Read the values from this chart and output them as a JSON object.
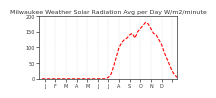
{
  "title": "Milwaukee Weather Solar Radiation Avg per Day W/m2/minute",
  "monthly_tick_positions": [
    2,
    6,
    10,
    14,
    18,
    22,
    26,
    30,
    34,
    38,
    42,
    46,
    50
  ],
  "monthly_tick_labels": [
    "J",
    "F",
    "M",
    "A",
    "M",
    "J",
    "J",
    "A",
    "S",
    "O",
    "N",
    "D",
    ""
  ],
  "line_color": "#ff0000",
  "bg_color": "#ffffff",
  "grid_color": "#aaaaaa",
  "ylim": [
    0,
    200
  ],
  "y_ticks": [
    0,
    50,
    100,
    150,
    200
  ],
  "y_tick_labels": [
    "0",
    "50",
    "100",
    "150",
    "200"
  ],
  "title_fontsize": 4.5,
  "tick_fontsize": 3.5,
  "x_data": [
    1,
    2,
    3,
    4,
    5,
    6,
    7,
    8,
    9,
    10,
    11,
    12,
    13,
    14,
    15,
    16,
    17,
    18,
    19,
    20,
    21,
    22,
    23,
    24,
    25,
    26,
    27,
    28,
    29,
    30,
    31,
    32,
    33,
    34,
    35,
    36,
    37,
    38,
    39,
    40,
    41,
    42,
    43,
    44,
    45,
    46,
    47,
    48,
    49,
    50,
    51,
    52
  ],
  "y_data": [
    0,
    0,
    0,
    0,
    0,
    0,
    0,
    0,
    0,
    0,
    0,
    0,
    0,
    0,
    0,
    0,
    0,
    0,
    0,
    0,
    0,
    0,
    0,
    0,
    0,
    5,
    15,
    40,
    70,
    100,
    115,
    125,
    130,
    140,
    145,
    130,
    150,
    160,
    170,
    180,
    175,
    160,
    145,
    140,
    125,
    110,
    85,
    65,
    45,
    25,
    12,
    4
  ]
}
